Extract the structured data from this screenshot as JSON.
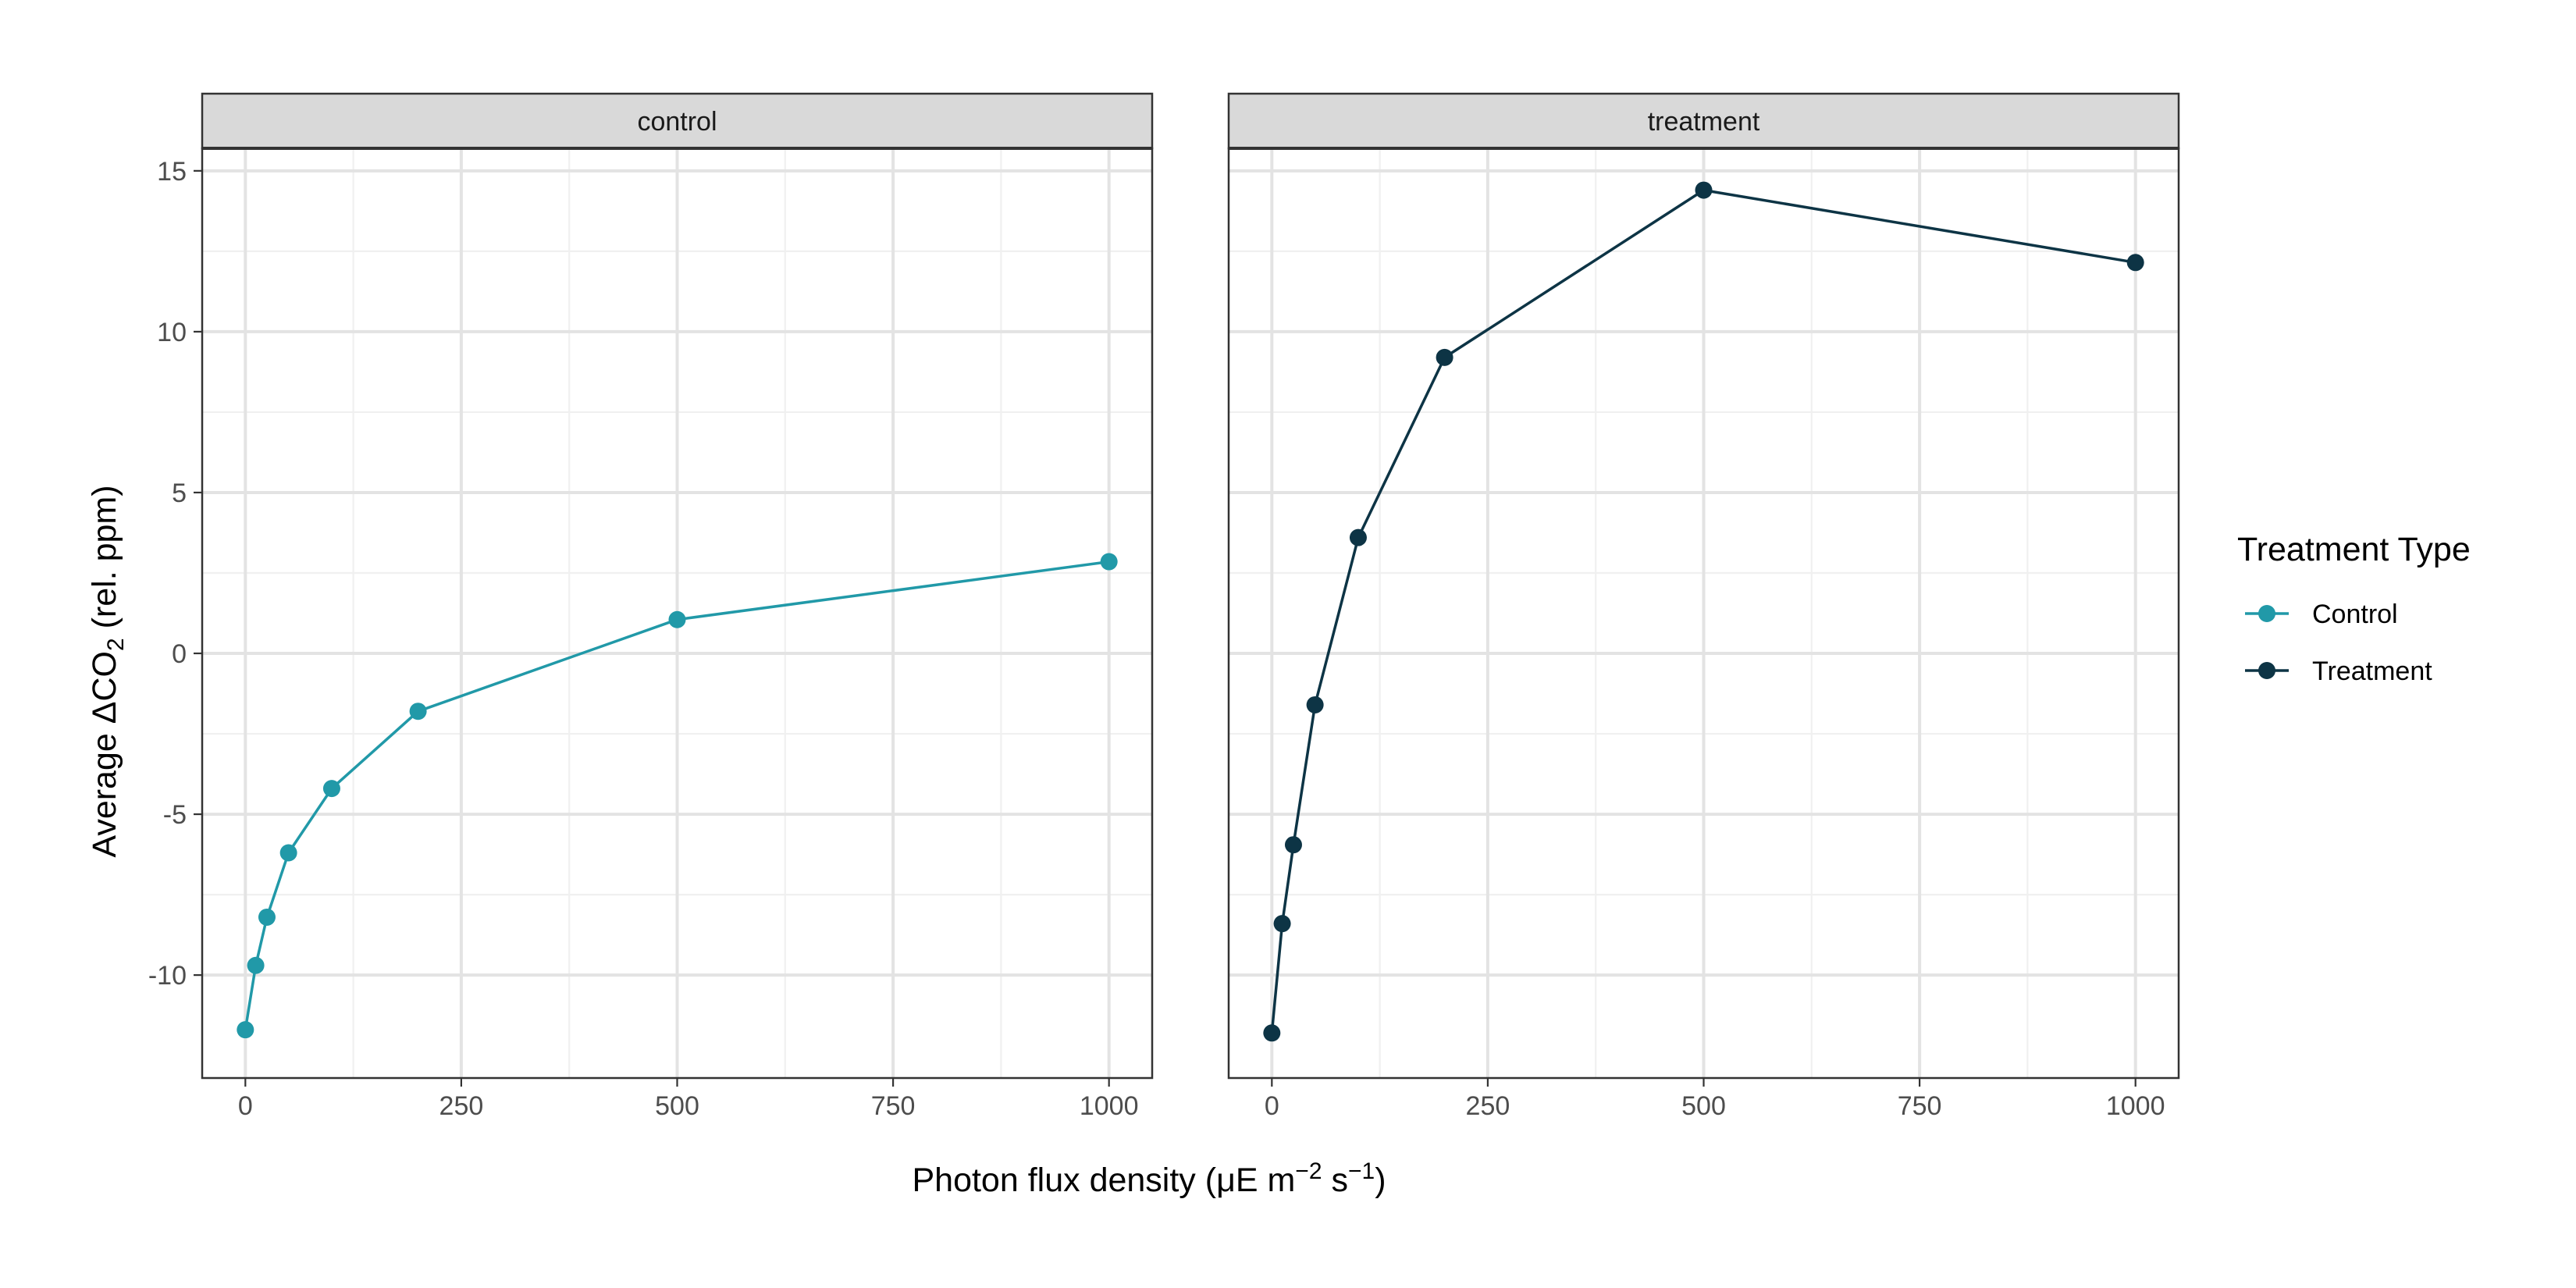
{
  "chart_data": {
    "type": "line",
    "facet_labels": [
      "control",
      "treatment"
    ],
    "xlabel_main": "Photon flux density (μE m",
    "xlabel_sup1": "−2",
    "xlabel_mid": " s",
    "xlabel_sup2": "−1",
    "xlabel_end": ")",
    "ylabel_main": "Average ΔCO",
    "ylabel_sub": "2",
    "ylabel_end": " (rel. ppm)",
    "x_ticks": [
      0,
      250,
      500,
      750,
      1000
    ],
    "x_tick_labels": [
      "0",
      "250",
      "500",
      "750",
      "1000"
    ],
    "xlim": [
      -50,
      1050
    ],
    "y_ticks": [
      -10,
      -5,
      0,
      5,
      10,
      15
    ],
    "y_tick_labels": [
      "-10",
      "-5",
      "0",
      "5",
      "10",
      "15"
    ],
    "ylim": [
      -13.2,
      15.7
    ],
    "grid": true,
    "legend_position": "right",
    "legend_title": "Treatment Type",
    "series": [
      {
        "name": "Control",
        "facet": 0,
        "color": "#2199a8",
        "x": [
          0,
          12,
          25,
          50,
          100,
          200,
          500,
          1000
        ],
        "y": [
          -11.7,
          -9.7,
          -8.2,
          -6.2,
          -4.2,
          -1.8,
          1.05,
          2.85
        ]
      },
      {
        "name": "Treatment",
        "facet": 1,
        "color": "#0d3445",
        "x": [
          0,
          12,
          25,
          50,
          100,
          200,
          500,
          1000
        ],
        "y": [
          -11.8,
          -8.4,
          -5.95,
          -1.6,
          3.6,
          9.2,
          14.4,
          12.15
        ]
      }
    ]
  }
}
